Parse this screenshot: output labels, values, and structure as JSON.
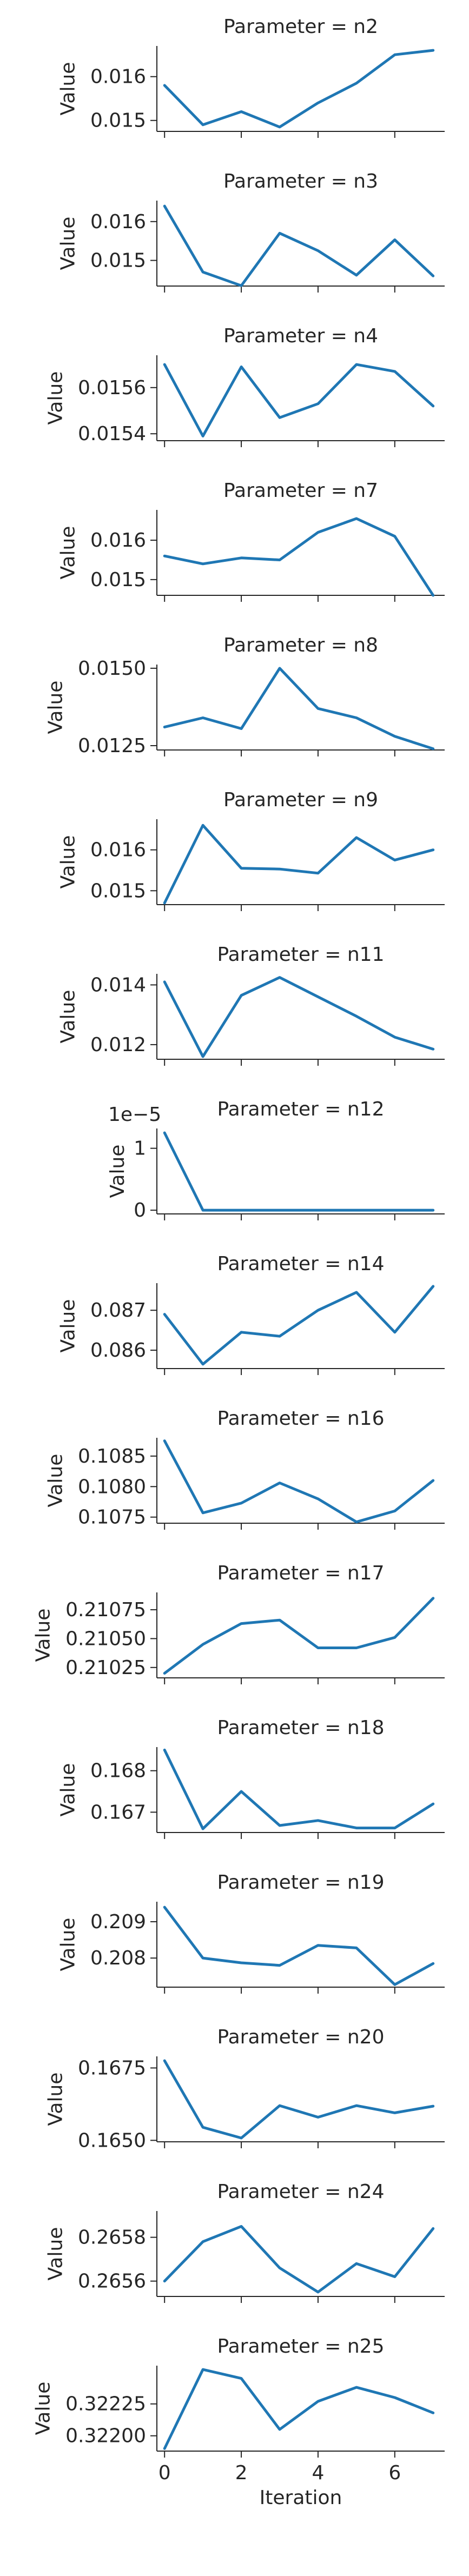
{
  "chart_data": {
    "type": "line",
    "x_label": "Iteration",
    "x_ticks": [
      "0",
      "2",
      "4",
      "6"
    ],
    "x_values": [
      0,
      1,
      2,
      3,
      4,
      5,
      6,
      7
    ],
    "series_color": "#1f77b4",
    "panels": [
      {
        "title": "Parameter = n2",
        "ylabel": "Value",
        "yticks": [
          "0.015",
          "0.016"
        ],
        "ytick_values": [
          0.015,
          0.016
        ],
        "ylim": [
          0.01475,
          0.0167
        ],
        "values": [
          0.0158,
          0.0149,
          0.0152,
          0.01485,
          0.0154,
          0.01585,
          0.0165,
          0.0166
        ]
      },
      {
        "title": "Parameter = n3",
        "ylabel": "Value",
        "yticks": [
          "0.015",
          "0.016"
        ],
        "ytick_values": [
          0.015,
          0.016
        ],
        "ylim": [
          0.01434,
          0.01654
        ],
        "values": [
          0.0164,
          0.0147,
          0.01435,
          0.0157,
          0.01525,
          0.01462,
          0.01553,
          0.0146
        ]
      },
      {
        "title": "Parameter = n4",
        "ylabel": "Value",
        "yticks": [
          "0.0154",
          "0.0156"
        ],
        "ytick_values": [
          0.0154,
          0.0156
        ],
        "ylim": [
          0.01537,
          0.01574
        ],
        "values": [
          0.0157,
          0.01539,
          0.01569,
          0.01547,
          0.01553,
          0.0157,
          0.01567,
          0.01552
        ]
      },
      {
        "title": "Parameter = n7",
        "ylabel": "Value",
        "yticks": [
          "0.015",
          "0.016"
        ],
        "ytick_values": [
          0.015,
          0.016
        ],
        "ylim": [
          0.0146,
          0.01677
        ],
        "values": [
          0.0156,
          0.0154,
          0.01555,
          0.0155,
          0.0162,
          0.01655,
          0.0161,
          0.0146
        ]
      },
      {
        "title": "Parameter = n8",
        "ylabel": "Value",
        "yticks": [
          "0.0125",
          "0.0150"
        ],
        "ytick_values": [
          0.0125,
          0.015
        ],
        "ylim": [
          0.01236,
          0.01512
        ],
        "values": [
          0.0131,
          0.0134,
          0.01305,
          0.015,
          0.0137,
          0.0134,
          0.0128,
          0.0124
        ]
      },
      {
        "title": "Parameter = n9",
        "ylabel": "Value",
        "yticks": [
          "0.015",
          "0.016"
        ],
        "ytick_values": [
          0.015,
          0.016
        ],
        "ylim": [
          0.01466,
          0.01675
        ],
        "values": [
          0.0147,
          0.0166,
          0.01555,
          0.01553,
          0.01543,
          0.0163,
          0.01575,
          0.016
        ]
      },
      {
        "title": "Parameter = n11",
        "ylabel": "Value",
        "yticks": [
          "0.012",
          "0.014"
        ],
        "ytick_values": [
          0.012,
          0.014
        ],
        "ylim": [
          0.01151,
          0.01437
        ],
        "values": [
          0.0141,
          0.0116,
          0.01365,
          0.01425,
          0.0136,
          0.01295,
          0.01225,
          0.01185
        ]
      },
      {
        "title": "Parameter = n12",
        "ylabel": "Value",
        "offset_text": "1e−5",
        "yticks": [
          "0",
          "1"
        ],
        "ytick_values": [
          0,
          1
        ],
        "ylim": [
          -0.06,
          1.32
        ],
        "values": [
          1.25,
          0,
          0,
          0,
          0,
          0,
          0,
          0
        ]
      },
      {
        "title": "Parameter = n14",
        "ylabel": "Value",
        "yticks": [
          "0.086",
          "0.087"
        ],
        "ytick_values": [
          0.086,
          0.087
        ],
        "ylim": [
          0.08554,
          0.08768
        ],
        "values": [
          0.0869,
          0.08565,
          0.08645,
          0.08635,
          0.087,
          0.08745,
          0.08645,
          0.0876
        ]
      },
      {
        "title": "Parameter = n16",
        "ylabel": "Value",
        "yticks": [
          "0.1075",
          "0.1080",
          "0.1085"
        ],
        "ytick_values": [
          0.1075,
          0.108,
          0.1085
        ],
        "ylim": [
          0.1074,
          0.1088
        ],
        "values": [
          0.10875,
          0.10757,
          0.10773,
          0.10806,
          0.1078,
          0.10742,
          0.1076,
          0.1081
        ]
      },
      {
        "title": "Parameter = n17",
        "ylabel": "Value",
        "yticks": [
          "0.21025",
          "0.21050",
          "0.21075"
        ],
        "ytick_values": [
          0.21025,
          0.2105,
          0.21075
        ],
        "ylim": [
          0.21016,
          0.2109
        ],
        "values": [
          0.2102,
          0.21045,
          0.21063,
          0.21066,
          0.21042,
          0.21042,
          0.21051,
          0.21085
        ]
      },
      {
        "title": "Parameter = n18",
        "ylabel": "Value",
        "yticks": [
          "0.167",
          "0.168"
        ],
        "ytick_values": [
          0.167,
          0.168
        ],
        "ylim": [
          0.16651,
          0.16857
        ],
        "values": [
          0.1685,
          0.1666,
          0.1675,
          0.16668,
          0.1668,
          0.16662,
          0.16662,
          0.1672
        ]
      },
      {
        "title": "Parameter = n19",
        "ylabel": "Value",
        "yticks": [
          "0.208",
          "0.209"
        ],
        "ytick_values": [
          0.208,
          0.209
        ],
        "ylim": [
          0.2072,
          0.20955
        ],
        "values": [
          0.2094,
          0.208,
          0.20787,
          0.2078,
          0.20835,
          0.20828,
          0.20727,
          0.20785
        ]
      },
      {
        "title": "Parameter = n20",
        "ylabel": "Value",
        "yticks": [
          "0.1650",
          "0.1675"
        ],
        "ytick_values": [
          0.165,
          0.1675
        ],
        "ylim": [
          0.16495,
          0.1679
        ],
        "values": [
          0.16775,
          0.16545,
          0.16508,
          0.1662,
          0.1658,
          0.1662,
          0.16595,
          0.16618
        ]
      },
      {
        "title": "Parameter = n24",
        "ylabel": "Value",
        "yticks": [
          "0.2656",
          "0.2658"
        ],
        "ytick_values": [
          0.2656,
          0.2658
        ],
        "ylim": [
          0.26553,
          0.26592
        ],
        "values": [
          0.2656,
          0.26578,
          0.26585,
          0.26566,
          0.26555,
          0.26568,
          0.26562,
          0.26584
        ]
      },
      {
        "title": "Parameter = n25",
        "ylabel": "Value",
        "yticks": [
          "0.32200",
          "0.32225"
        ],
        "ytick_values": [
          0.322,
          0.32225
        ],
        "ylim": [
          0.32188,
          0.32255
        ],
        "values": [
          0.3219,
          0.32252,
          0.32245,
          0.32205,
          0.32227,
          0.32238,
          0.3223,
          0.32218
        ]
      }
    ]
  }
}
